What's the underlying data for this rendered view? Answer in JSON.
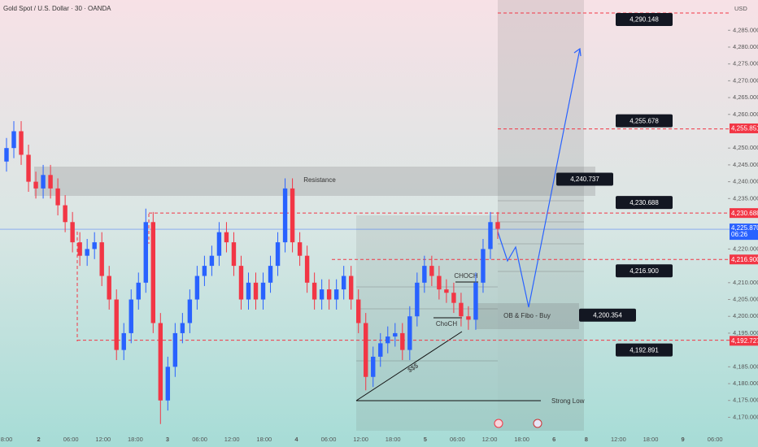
{
  "chart_data": {
    "type": "candlestick",
    "title": "Gold Spot / U.S. Dollar · 30 · OANDA",
    "currency": "USD",
    "up_color": "#2962ff",
    "down_color": "#f23645",
    "open": [
      4246,
      4250,
      4255,
      4248,
      4240,
      4238,
      4242,
      4238,
      4233,
      4228,
      4222,
      4218,
      4220,
      4222,
      4212,
      4205,
      4190,
      4195,
      4205,
      4210,
      4228,
      4198,
      4175,
      4185,
      4195,
      4198,
      4205,
      4212,
      4215,
      4218,
      4225,
      4222,
      4215,
      4205,
      4210,
      4205,
      4210,
      4215,
      4222,
      4238,
      4222,
      4218,
      4210,
      4205,
      4208,
      4205,
      4208,
      4212,
      4205,
      4198,
      4182,
      4188,
      4192,
      4194,
      4195,
      4190,
      4200,
      4210,
      4215,
      4212,
      4208,
      4207,
      4204,
      4200,
      4199,
      4210,
      4220,
      4228
    ],
    "high": [
      4253,
      4258,
      4258,
      4251,
      4243,
      4245,
      4245,
      4241,
      4236,
      4231,
      4225,
      4223,
      4225,
      4225,
      4215,
      4208,
      4198,
      4208,
      4213,
      4232,
      4231,
      4201,
      4188,
      4198,
      4201,
      4208,
      4215,
      4218,
      4221,
      4228,
      4228,
      4225,
      4218,
      4213,
      4213,
      4213,
      4218,
      4225,
      4241,
      4241,
      4225,
      4221,
      4213,
      4211,
      4211,
      4211,
      4215,
      4215,
      4208,
      4201,
      4191,
      4195,
      4197,
      4198,
      4198,
      4203,
      4213,
      4218,
      4218,
      4215,
      4211,
      4210,
      4207,
      4203,
      4213,
      4223,
      4231,
      4231
    ],
    "low": [
      4243,
      4247,
      4245,
      4237,
      4235,
      4235,
      4235,
      4230,
      4225,
      4219,
      4215,
      4215,
      4217,
      4209,
      4202,
      4187,
      4187,
      4192,
      4202,
      4207,
      4195,
      4168,
      4172,
      4182,
      4192,
      4195,
      4202,
      4209,
      4212,
      4215,
      4219,
      4212,
      4202,
      4202,
      4202,
      4202,
      4207,
      4212,
      4219,
      4219,
      4215,
      4207,
      4202,
      4202,
      4202,
      4202,
      4205,
      4202,
      4195,
      4178,
      4179,
      4185,
      4189,
      4191,
      4187,
      4187,
      4197,
      4207,
      4209,
      4205,
      4204,
      4201,
      4197,
      4196,
      4196,
      4207,
      4217,
      4223
    ],
    "close": [
      4250,
      4255,
      4248,
      4240,
      4238,
      4242,
      4238,
      4233,
      4228,
      4222,
      4218,
      4220,
      4222,
      4212,
      4205,
      4190,
      4195,
      4205,
      4210,
      4228,
      4198,
      4175,
      4185,
      4195,
      4198,
      4205,
      4212,
      4215,
      4218,
      4225,
      4222,
      4215,
      4205,
      4210,
      4205,
      4210,
      4215,
      4222,
      4238,
      4222,
      4218,
      4210,
      4205,
      4208,
      4205,
      4208,
      4212,
      4205,
      4198,
      4182,
      4188,
      4192,
      4194,
      4195,
      4190,
      4200,
      4210,
      4215,
      4212,
      4208,
      4207,
      4204,
      4200,
      4199,
      4210,
      4220,
      4228,
      4226
    ],
    "ylim": [
      4166,
      4294
    ],
    "yticks": [
      {
        "value": 4285,
        "label": "4,285.000"
      },
      {
        "value": 4280,
        "label": "4,280.000"
      },
      {
        "value": 4275,
        "label": "4,275.000"
      },
      {
        "value": 4270,
        "label": "4,270.000"
      },
      {
        "value": 4265,
        "label": "4,265.000"
      },
      {
        "value": 4260,
        "label": "4,260.000"
      },
      {
        "value": 4250,
        "label": "4,250.000"
      },
      {
        "value": 4245,
        "label": "4,245.000"
      },
      {
        "value": 4240,
        "label": "4,240.000"
      },
      {
        "value": 4235,
        "label": "4,235.000"
      },
      {
        "value": 4220,
        "label": "4,220.000"
      },
      {
        "value": 4210,
        "label": "4,210.000"
      },
      {
        "value": 4205,
        "label": "4,205.000"
      },
      {
        "value": 4200,
        "label": "4,200.000"
      },
      {
        "value": 4195,
        "label": "4,195.000"
      },
      {
        "value": 4185,
        "label": "4,185.000"
      },
      {
        "value": 4180,
        "label": "4,180.000"
      },
      {
        "value": 4175,
        "label": "4,175.000"
      },
      {
        "value": 4170,
        "label": "4,170.000"
      }
    ],
    "x_labels": [
      "8:00",
      "2",
      "06:00",
      "12:00",
      "18:00",
      "3",
      "06:00",
      "12:00",
      "18:00",
      "4",
      "06:00",
      "12:00",
      "18:00",
      "5",
      "06:00",
      "12:00",
      "18:00",
      "6",
      "8",
      "12:00",
      "18:00",
      "9",
      "06:00"
    ],
    "price_tags": [
      {
        "value": 4255.851,
        "label": "4,255.851",
        "color": "#f23645"
      },
      {
        "value": 4230.688,
        "label": "4,230.688",
        "color": "#f23645"
      },
      {
        "value": 4216.9,
        "label": "4,216.900",
        "color": "#f23645"
      },
      {
        "value": 4192.727,
        "label": "4,192.727",
        "color": "#f23645"
      }
    ],
    "current_price": {
      "value": 4225.87,
      "label": "4,225.870",
      "countdown": "06:26",
      "color": "#2962ff"
    },
    "levels": [
      {
        "value": 4290.148,
        "label": "4,290.148",
        "dashed": true
      },
      {
        "value": 4255.678,
        "label": "4,255.678",
        "dashed": true
      },
      {
        "value": 4240.737,
        "label": "4,240.737",
        "dashed": false
      },
      {
        "value": 4230.688,
        "label": "4,230.688",
        "dashed": true
      },
      {
        "value": 4216.9,
        "label": "4,216.900",
        "dashed": true
      },
      {
        "value": 4200.354,
        "label": "4,200.354",
        "dashed": false
      },
      {
        "value": 4192.891,
        "label": "4,192.891",
        "dashed": true
      }
    ],
    "annotations": {
      "resistance": "Resistance",
      "zone": "OB & Fibo - Buy",
      "choch_upper": "CHOCH",
      "choch_lower": "ChoCH",
      "liquidity": "$$$",
      "strong_low": "Strong Low"
    }
  }
}
